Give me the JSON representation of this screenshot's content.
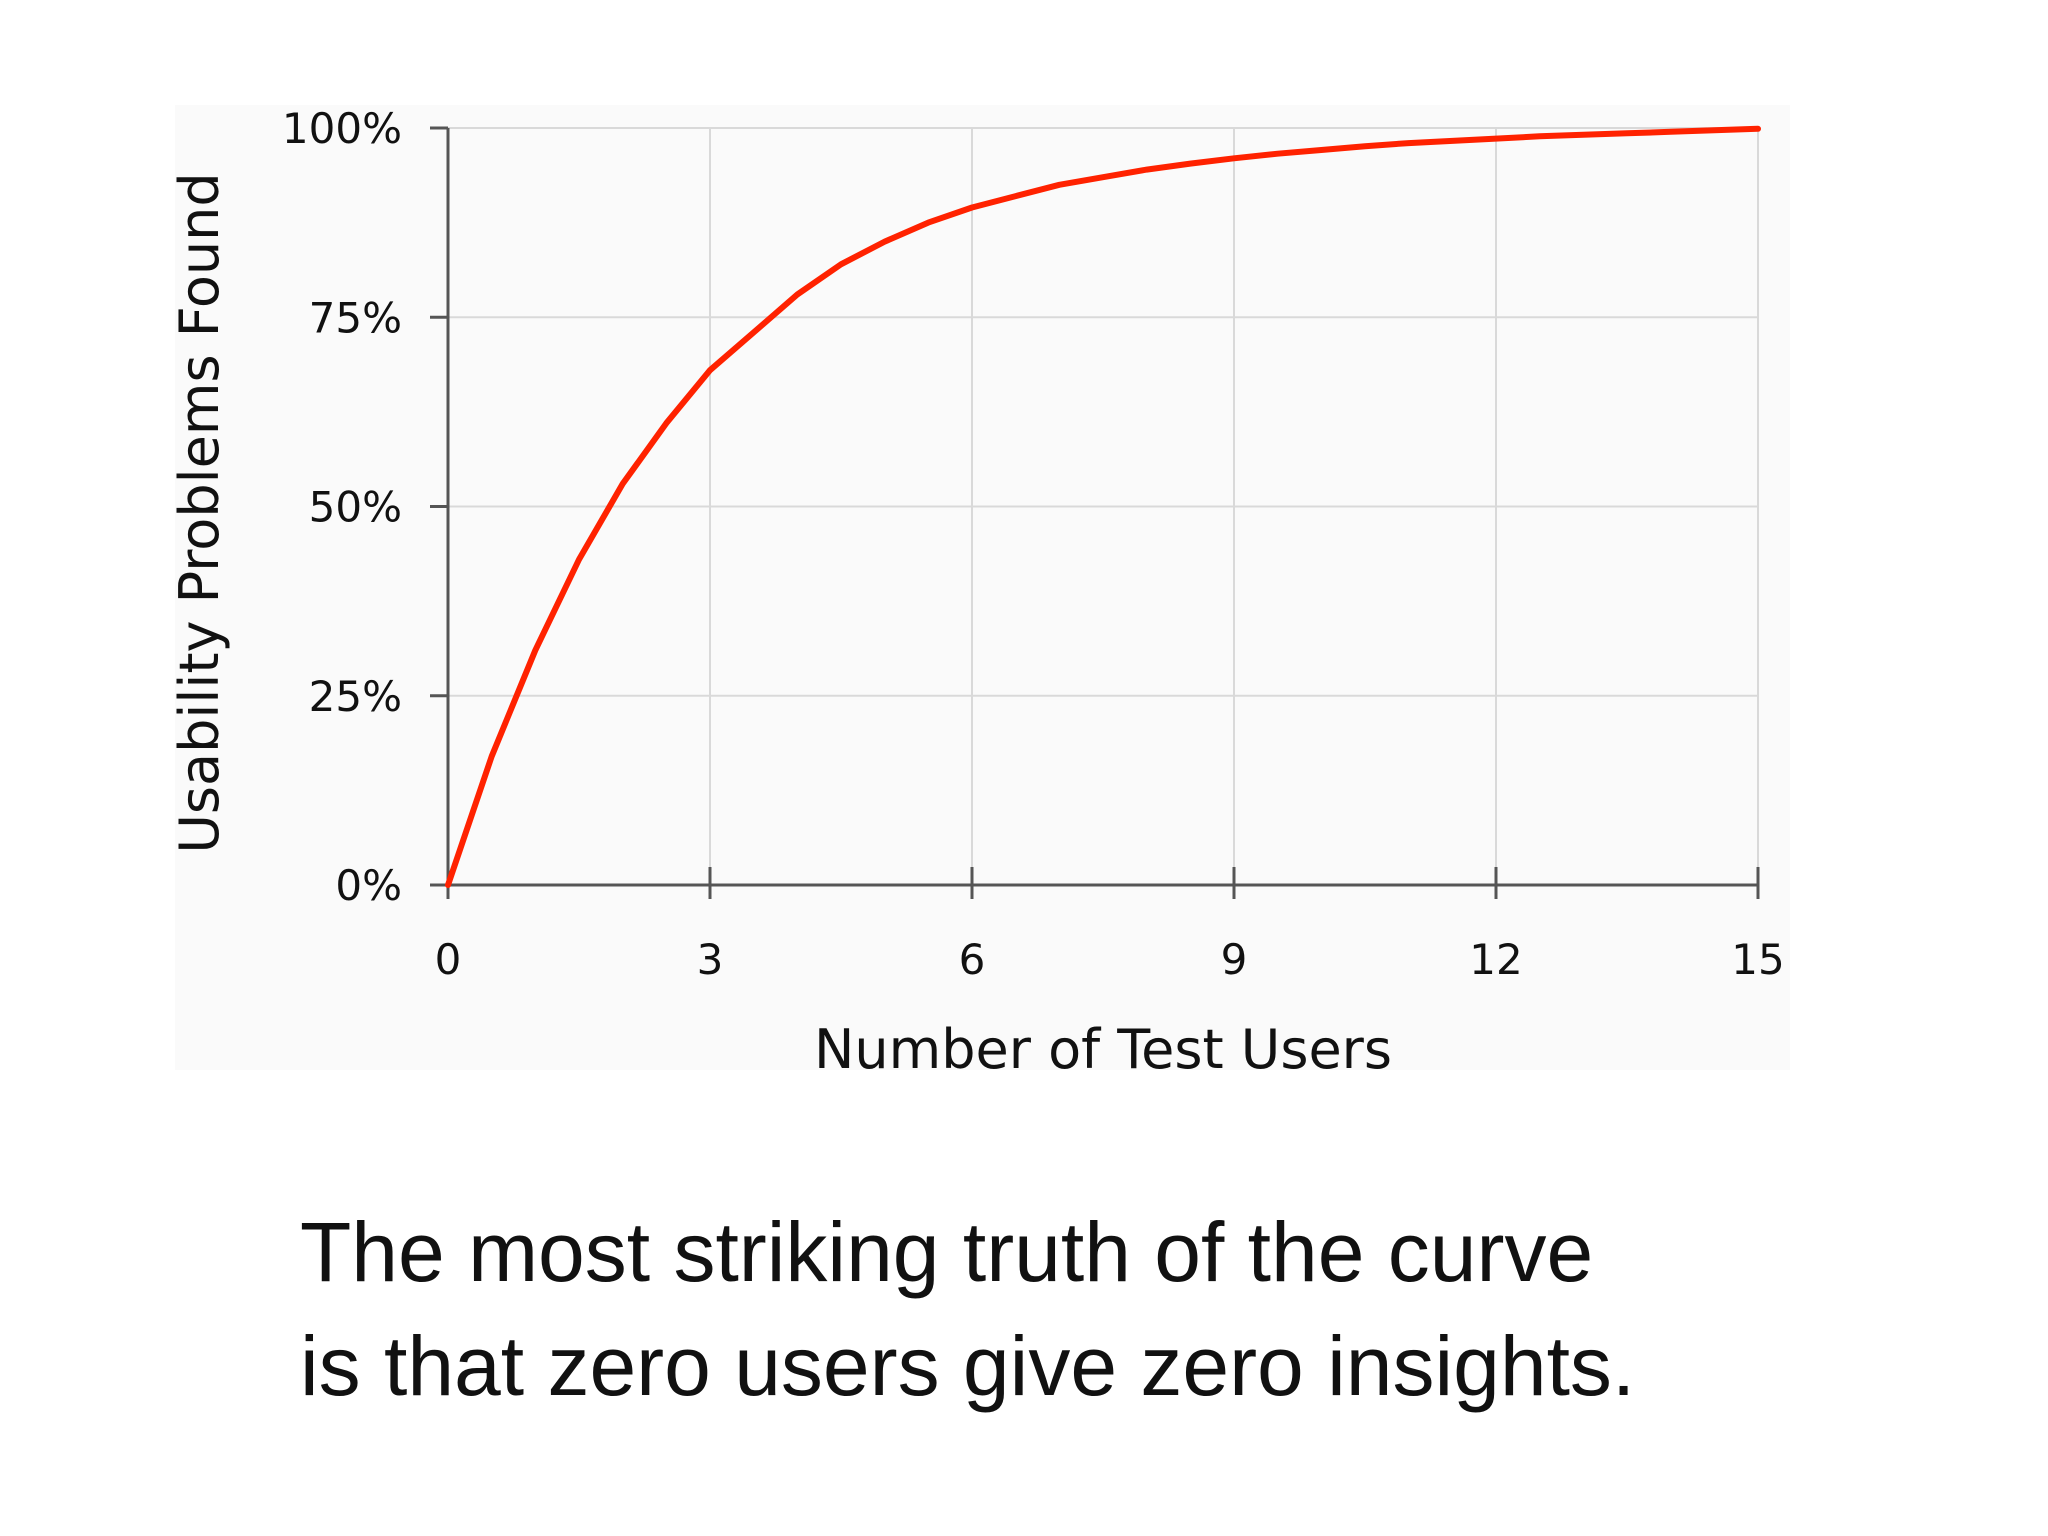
{
  "chart_data": {
    "type": "line",
    "title": "",
    "xlabel": "Number of Test Users",
    "ylabel": "Usability Problems Found",
    "xlim": [
      0,
      15
    ],
    "ylim": [
      0,
      100
    ],
    "x_ticks": [
      0,
      3,
      6,
      9,
      12,
      15
    ],
    "x_tick_labels": [
      "0",
      "3",
      "6",
      "9",
      "12",
      "15"
    ],
    "y_ticks": [
      0,
      25,
      50,
      75,
      100
    ],
    "y_tick_labels": [
      "0%",
      "25%",
      "50%",
      "75%",
      "100%"
    ],
    "grid": true,
    "series": [
      {
        "color": "#ff2200",
        "x": [
          0,
          0.5,
          1,
          1.5,
          2,
          2.5,
          3,
          3.5,
          4,
          4.5,
          5,
          5.5,
          6,
          6.5,
          7,
          7.5,
          8,
          8.5,
          9,
          9.5,
          10,
          10.5,
          11,
          11.5,
          12,
          12.5,
          13,
          13.5,
          14,
          14.5,
          15
        ],
        "y": [
          0,
          17,
          31,
          43,
          53,
          61,
          68,
          73,
          78,
          82,
          85,
          87.5,
          89.5,
          91,
          92.5,
          93.5,
          94.5,
          95.3,
          96,
          96.6,
          97.1,
          97.6,
          98,
          98.3,
          98.6,
          98.9,
          99.1,
          99.3,
          99.5,
          99.7,
          99.9
        ]
      }
    ]
  },
  "caption": {
    "line1": "The most striking truth of the curve",
    "line2": "is that zero users give zero insights."
  }
}
